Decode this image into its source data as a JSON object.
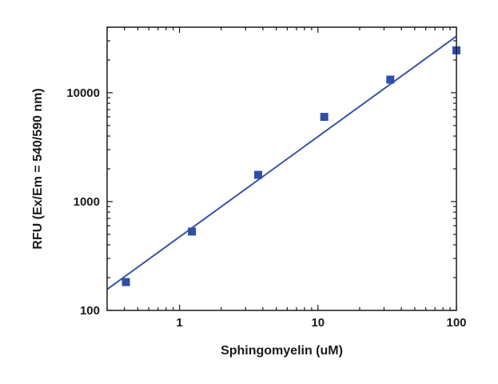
{
  "chart_data": {
    "type": "scatter",
    "xlabel": "Sphingomyelin (uM)",
    "ylabel": "RFU (Ex/Em = 540/590 nm)",
    "xscale": "log",
    "yscale": "log",
    "xlim": [
      0.3,
      100
    ],
    "ylim": [
      100,
      40000
    ],
    "x_ticks": [
      1,
      10,
      100
    ],
    "x_tick_labels": [
      "1",
      "10",
      "100"
    ],
    "y_ticks": [
      100,
      1000,
      10000
    ],
    "y_tick_labels": [
      "100",
      "1000",
      "10000"
    ],
    "grid": false,
    "legend": "none",
    "series": [
      {
        "marker": "square",
        "color": "#2e4fa3",
        "x": [
          0.41,
          1.23,
          3.7,
          11.1,
          33.3,
          100
        ],
        "y": [
          182,
          530,
          1760,
          6000,
          13200,
          24500
        ]
      }
    ],
    "fit_line": {
      "color": "#3a55a4",
      "points": [
        [
          0.3,
          156
        ],
        [
          100,
          33000
        ]
      ]
    }
  }
}
